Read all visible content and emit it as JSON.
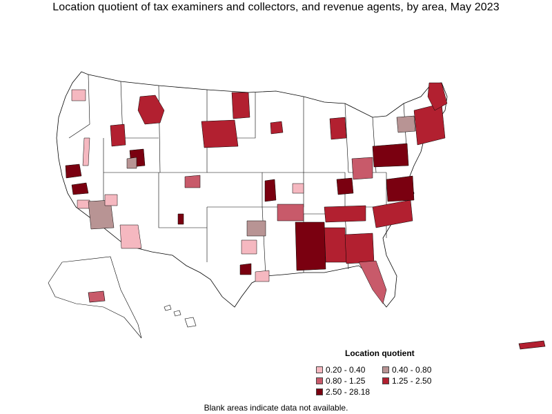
{
  "title": "Location quotient of tax examiners and collectors, and revenue agents, by area, May 2023",
  "legend": {
    "title": "Location quotient",
    "items": [
      {
        "label": "0.20 - 0.40",
        "color": "#f5b8c0"
      },
      {
        "label": "0.40 - 0.80",
        "color": "#b89494"
      },
      {
        "label": "0.80 - 1.25",
        "color": "#c85a6a"
      },
      {
        "label": "1.25 - 2.50",
        "color": "#b22030"
      },
      {
        "label": "2.50 - 28.18",
        "color": "#7a0010"
      }
    ]
  },
  "note": "Blank areas indicate data not available.",
  "colors": {
    "border": "#000000",
    "blank": "#ffffff"
  }
}
